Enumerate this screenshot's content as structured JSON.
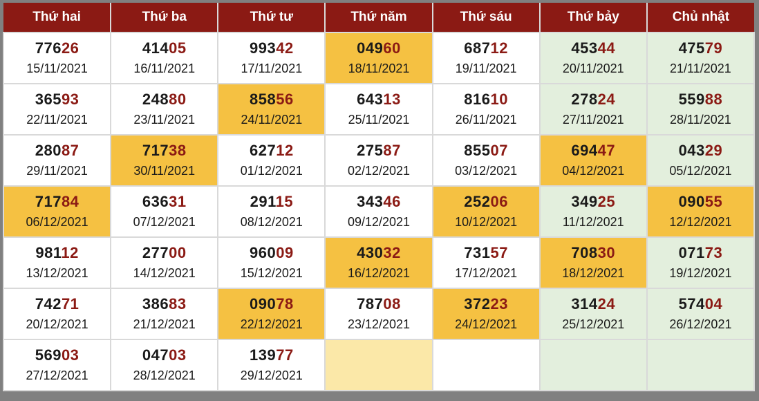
{
  "header": [
    "Thứ hai",
    "Thứ ba",
    "Thứ tư",
    "Thứ năm",
    "Thứ sáu",
    "Thứ bảy",
    "Chủ nhật"
  ],
  "colors": {
    "header_bg": "#8b1a14",
    "highlight": "#f5c142",
    "weekend": "#e3efdd",
    "number_tail": "#8b1a14"
  },
  "rows": [
    [
      {
        "num": "77626",
        "date": "15/11/2021",
        "hl": false
      },
      {
        "num": "41405",
        "date": "16/11/2021",
        "hl": false
      },
      {
        "num": "99342",
        "date": "17/11/2021",
        "hl": false
      },
      {
        "num": "04960",
        "date": "18/11/2021",
        "hl": true
      },
      {
        "num": "68712",
        "date": "19/11/2021",
        "hl": false
      },
      {
        "num": "45344",
        "date": "20/11/2021",
        "hl": false
      },
      {
        "num": "47579",
        "date": "21/11/2021",
        "hl": false
      }
    ],
    [
      {
        "num": "36593",
        "date": "22/11/2021",
        "hl": false
      },
      {
        "num": "24880",
        "date": "23/11/2021",
        "hl": false
      },
      {
        "num": "85856",
        "date": "24/11/2021",
        "hl": true
      },
      {
        "num": "64313",
        "date": "25/11/2021",
        "hl": false
      },
      {
        "num": "81610",
        "date": "26/11/2021",
        "hl": false
      },
      {
        "num": "27824",
        "date": "27/11/2021",
        "hl": false
      },
      {
        "num": "55988",
        "date": "28/11/2021",
        "hl": false
      }
    ],
    [
      {
        "num": "28087",
        "date": "29/11/2021",
        "hl": false
      },
      {
        "num": "71738",
        "date": "30/11/2021",
        "hl": true
      },
      {
        "num": "62712",
        "date": "01/12/2021",
        "hl": false
      },
      {
        "num": "27587",
        "date": "02/12/2021",
        "hl": false
      },
      {
        "num": "85507",
        "date": "03/12/2021",
        "hl": false
      },
      {
        "num": "69447",
        "date": "04/12/2021",
        "hl": true
      },
      {
        "num": "04329",
        "date": "05/12/2021",
        "hl": false
      }
    ],
    [
      {
        "num": "71784",
        "date": "06/12/2021",
        "hl": true
      },
      {
        "num": "63631",
        "date": "07/12/2021",
        "hl": false
      },
      {
        "num": "29115",
        "date": "08/12/2021",
        "hl": false
      },
      {
        "num": "34346",
        "date": "09/12/2021",
        "hl": false
      },
      {
        "num": "25206",
        "date": "10/12/2021",
        "hl": true
      },
      {
        "num": "34925",
        "date": "11/12/2021",
        "hl": false
      },
      {
        "num": "09055",
        "date": "12/12/2021",
        "hl": true
      }
    ],
    [
      {
        "num": "98112",
        "date": "13/12/2021",
        "hl": false
      },
      {
        "num": "27700",
        "date": "14/12/2021",
        "hl": false
      },
      {
        "num": "96009",
        "date": "15/12/2021",
        "hl": false
      },
      {
        "num": "43032",
        "date": "16/12/2021",
        "hl": true
      },
      {
        "num": "73157",
        "date": "17/12/2021",
        "hl": false
      },
      {
        "num": "70830",
        "date": "18/12/2021",
        "hl": true
      },
      {
        "num": "07173",
        "date": "19/12/2021",
        "hl": false
      }
    ],
    [
      {
        "num": "74271",
        "date": "20/12/2021",
        "hl": false
      },
      {
        "num": "38683",
        "date": "21/12/2021",
        "hl": false
      },
      {
        "num": "09078",
        "date": "22/12/2021",
        "hl": true
      },
      {
        "num": "78708",
        "date": "23/12/2021",
        "hl": false
      },
      {
        "num": "37223",
        "date": "24/12/2021",
        "hl": true
      },
      {
        "num": "31424",
        "date": "25/12/2021",
        "hl": false
      },
      {
        "num": "57404",
        "date": "26/12/2021",
        "hl": false
      }
    ],
    [
      {
        "num": "56903",
        "date": "27/12/2021",
        "hl": false
      },
      {
        "num": "04703",
        "date": "28/12/2021",
        "hl": false
      },
      {
        "num": "13977",
        "date": "29/12/2021",
        "hl": false
      },
      {
        "num": "",
        "date": "",
        "hl": "empty"
      },
      {
        "num": "",
        "date": "",
        "hl": false
      },
      {
        "num": "",
        "date": "",
        "hl": false
      },
      {
        "num": "",
        "date": "",
        "hl": false
      }
    ]
  ]
}
